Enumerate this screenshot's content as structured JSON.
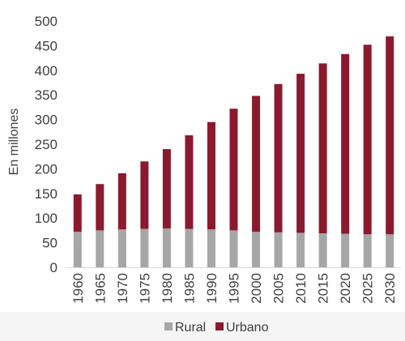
{
  "chart_data": {
    "type": "bar",
    "stacked": true,
    "categories": [
      "1960",
      "1965",
      "1970",
      "1975",
      "1980",
      "1985",
      "1990",
      "1995",
      "2000",
      "2005",
      "2010",
      "2015",
      "2020",
      "2025",
      "2030"
    ],
    "series": [
      {
        "name": "Rural",
        "color": "#a6a6a6",
        "values": [
          72,
          75,
          77,
          78,
          79,
          78,
          77,
          75,
          72,
          71,
          70,
          69,
          68,
          67,
          67
        ]
      },
      {
        "name": "Urbano",
        "color": "#8b1a2e",
        "values": [
          76,
          94,
          114,
          137,
          161,
          190,
          218,
          247,
          276,
          301,
          323,
          345,
          365,
          385,
          402
        ]
      }
    ],
    "ylabel": "En millones",
    "ylim": [
      0,
      500
    ],
    "yticks": [
      0,
      50,
      100,
      150,
      200,
      250,
      300,
      350,
      400,
      450,
      500
    ],
    "grid": false,
    "legend_position": "bottom"
  }
}
